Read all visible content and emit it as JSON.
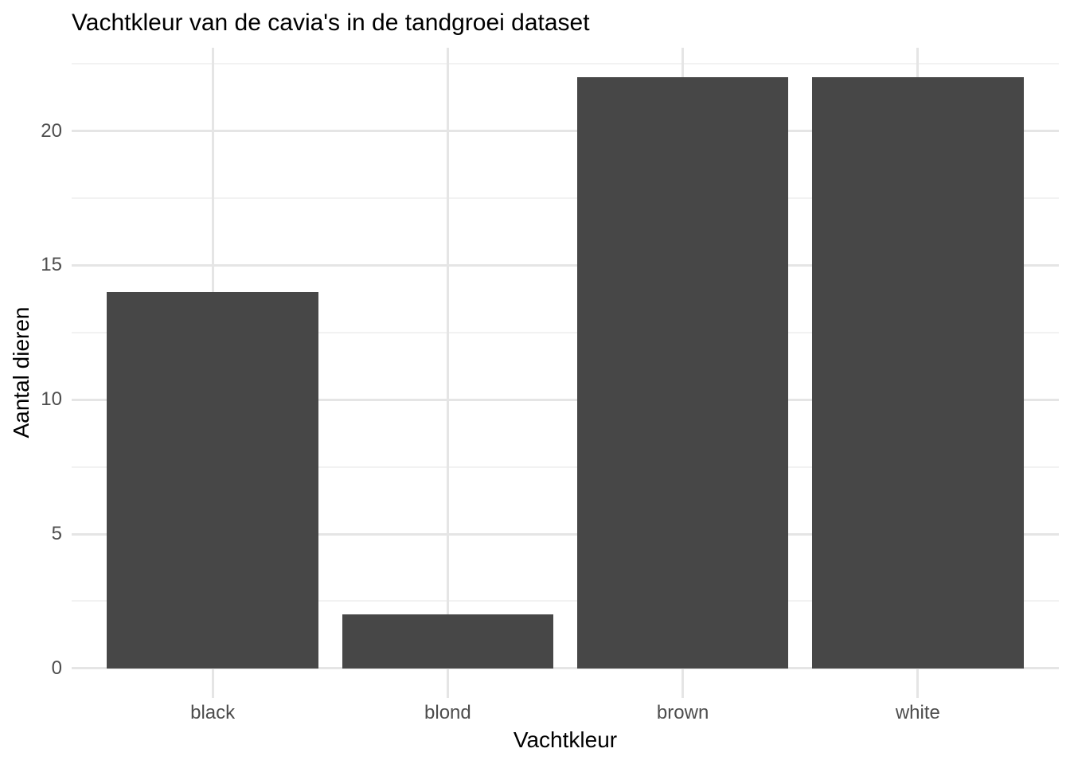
{
  "chart_data": {
    "type": "bar",
    "title": "Vachtkleur van de cavia's in de tandgroei dataset",
    "xlabel": "Vachtkleur",
    "ylabel": "Aantal dieren",
    "categories": [
      "black",
      "blond",
      "brown",
      "white"
    ],
    "values": [
      14,
      2,
      22,
      22
    ],
    "ytick_labels": [
      "0",
      "5",
      "10",
      "15",
      "20"
    ],
    "yticks_major": [
      0,
      5,
      10,
      15,
      20
    ],
    "yticks_minor": [
      2.5,
      7.5,
      12.5,
      17.5,
      22.5
    ],
    "ylim": [
      -1.1,
      23.1
    ],
    "grid": true,
    "legend": "none",
    "colors": {
      "bar_fill": "#474747",
      "background": "#ffffff",
      "grid_major": "#e5e5e5",
      "grid_minor": "#f2f2f2",
      "tick_label": "#4d4d4d",
      "title_text": "#000000"
    }
  }
}
